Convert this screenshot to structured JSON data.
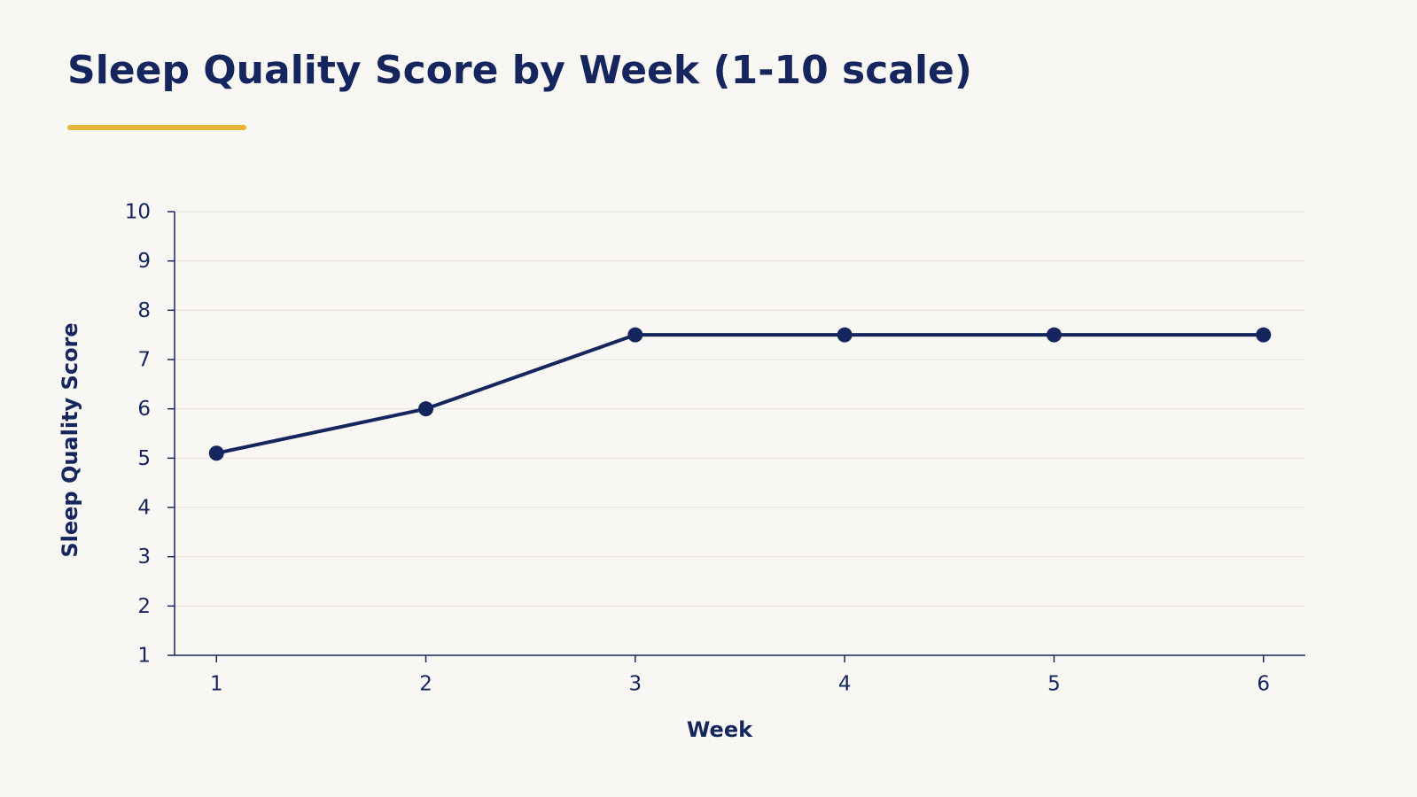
{
  "chart_data": {
    "type": "line",
    "title": "Sleep Quality Score by Week (1-10 scale)",
    "x_label": "Week",
    "y_label": "Sleep Quality Score",
    "x": [
      1,
      2,
      3,
      4,
      5,
      6
    ],
    "values": [
      5.1,
      6.0,
      7.5,
      7.5,
      7.5,
      7.5
    ],
    "color": "#15265e",
    "xlim": [
      0.8,
      6.2
    ],
    "xticks": [
      1,
      2,
      3,
      4,
      5,
      6
    ],
    "ylim": [
      1,
      10
    ],
    "yticks": [
      1,
      2,
      3,
      4,
      5,
      6,
      7,
      8,
      9,
      10
    ],
    "grid": true
  }
}
